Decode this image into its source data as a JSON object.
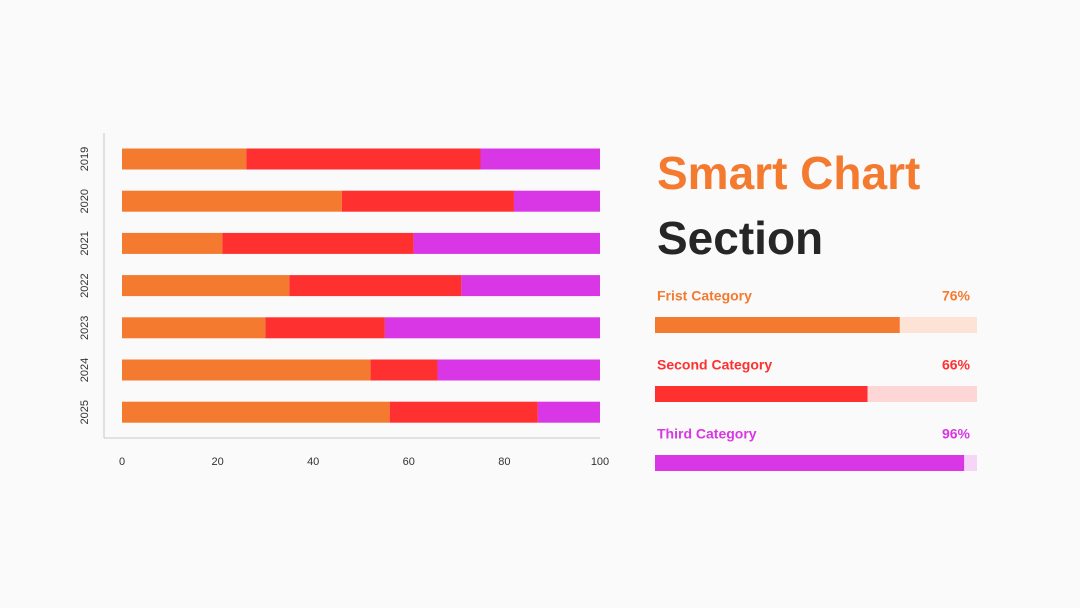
{
  "chart_data": {
    "type": "bar",
    "orientation": "horizontal",
    "stacked": true,
    "categories": [
      "2019",
      "2020",
      "2021",
      "2022",
      "2023",
      "2024",
      "2025"
    ],
    "series": [
      {
        "color": "#f47a30",
        "values": [
          26,
          46,
          21,
          35,
          30,
          52,
          56
        ]
      },
      {
        "color": "#ff3030",
        "values": [
          49,
          36,
          40,
          36,
          25,
          14,
          31
        ]
      },
      {
        "color": "#d936e5",
        "values": [
          25,
          18,
          39,
          29,
          45,
          34,
          13
        ]
      }
    ],
    "xlim": [
      0,
      100
    ],
    "xticks": [
      0,
      20,
      40,
      60,
      80,
      100
    ]
  },
  "heading": {
    "line1": "Smart Chart",
    "line1_color": "#f47a30",
    "line2": "Section"
  },
  "progress": [
    {
      "label": "Frist Category",
      "value": 76,
      "value_label": "76%",
      "color": "#f47a30",
      "track": "#fde3d6"
    },
    {
      "label": "Second Category",
      "value": 66,
      "value_label": "66%",
      "color": "#ff3030",
      "track": "#ffd6d6"
    },
    {
      "label": "Third Category",
      "value": 96,
      "value_label": "96%",
      "color": "#d936e5",
      "track": "#f6d6f8"
    }
  ]
}
